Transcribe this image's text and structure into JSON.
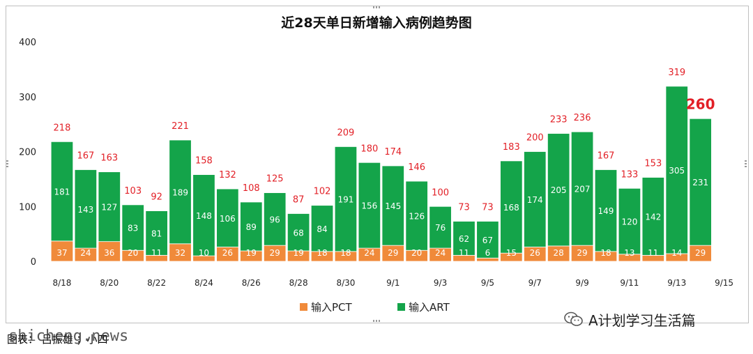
{
  "chart_data": {
    "type": "bar",
    "stacked": true,
    "title": "近28天单日新增输入病例趋势图",
    "ylim": [
      0,
      400
    ],
    "yticks": [
      0,
      100,
      200,
      300,
      400
    ],
    "categories": [
      "8/18",
      "8/19",
      "8/20",
      "8/21",
      "8/22",
      "8/23",
      "8/24",
      "8/25",
      "8/26",
      "8/27",
      "8/28",
      "8/29",
      "8/30",
      "8/31",
      "9/1",
      "9/2",
      "9/3",
      "9/4",
      "9/5",
      "9/6",
      "9/7",
      "9/8",
      "9/9",
      "9/10",
      "9/11",
      "9/12",
      "9/13",
      "9/14"
    ],
    "x_tick_labels": [
      "8/18",
      "8/20",
      "8/22",
      "8/24",
      "8/26",
      "8/28",
      "8/30",
      "9/1",
      "9/3",
      "9/5",
      "9/7",
      "9/9",
      "9/11",
      "9/13",
      "9/15"
    ],
    "series": [
      {
        "name": "输入PCT",
        "color": "#f08a3a",
        "values": [
          37,
          24,
          36,
          20,
          11,
          32,
          10,
          26,
          19,
          29,
          19,
          18,
          18,
          24,
          29,
          20,
          24,
          11,
          6,
          15,
          26,
          28,
          29,
          18,
          13,
          11,
          14,
          29
        ]
      },
      {
        "name": "输入ART",
        "color": "#14a44a",
        "values": [
          181,
          143,
          127,
          83,
          81,
          189,
          148,
          106,
          89,
          96,
          68,
          84,
          191,
          156,
          145,
          126,
          76,
          62,
          67,
          168,
          174,
          205,
          207,
          149,
          120,
          142,
          305,
          231
        ]
      }
    ],
    "totals": [
      218,
      167,
      163,
      103,
      92,
      221,
      158,
      132,
      108,
      125,
      87,
      102,
      209,
      180,
      174,
      146,
      100,
      73,
      73,
      183,
      200,
      233,
      236,
      167,
      133,
      153,
      319,
      260
    ],
    "highlight_last_total": true,
    "total_label_color": "#e21f26",
    "grid": false,
    "legend_position": "bottom-center"
  },
  "watermark": {
    "text": "A计划学习生活篇",
    "icon": "wechat-icon"
  },
  "footer": {
    "source": "图表： 吕振雄 ；小四",
    "site": "shicheng.news"
  }
}
